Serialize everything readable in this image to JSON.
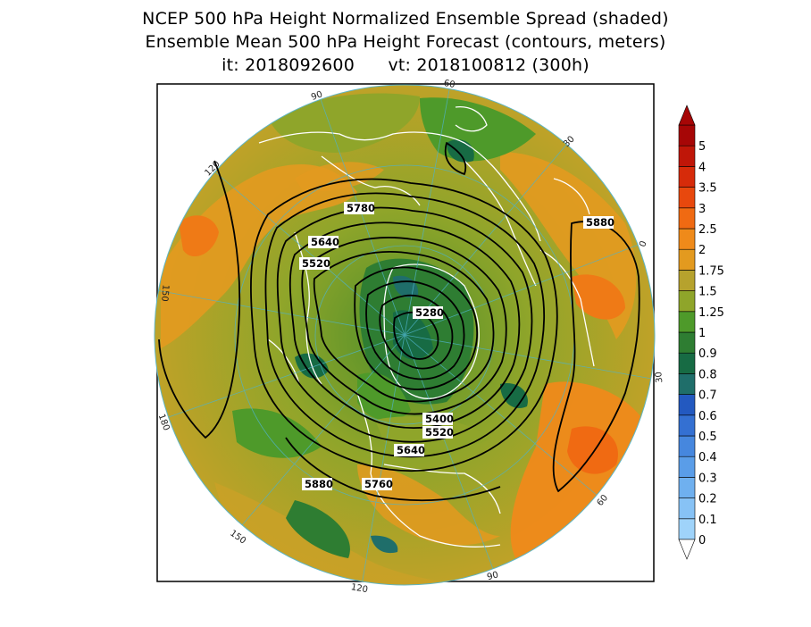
{
  "title": {
    "line1": "NCEP 500 hPa Height Normalized Ensemble Spread (shaded)",
    "line2": "Ensemble Mean 500 hPa Height Forecast (contours, meters)",
    "line3": "it: 2018092600      vt: 2018100812 (300h)"
  },
  "longitude_labels": [
    "60",
    "30",
    "0",
    "30",
    "60",
    "90",
    "120",
    "150",
    "180",
    "150",
    "120",
    "90"
  ],
  "contour_labels": [
    "5780",
    "5640",
    "5520",
    "5280",
    "5400",
    "5520",
    "5640",
    "5760",
    "5880",
    "5880"
  ],
  "colorbar": {
    "levels": [
      "0",
      "0.1",
      "0.2",
      "0.3",
      "0.4",
      "0.5",
      "0.6",
      "0.7",
      "0.8",
      "0.9",
      "1",
      "1.25",
      "1.5",
      "1.75",
      "2",
      "2.5",
      "3",
      "3.5",
      "4",
      "5"
    ],
    "colors": [
      "#9fd3fa",
      "#87c2f5",
      "#6fb0ef",
      "#5a9de8",
      "#4687de",
      "#3470d2",
      "#2359c0",
      "#1f6e6a",
      "#176b44",
      "#2e7d32",
      "#4e9a2a",
      "#8fa52a",
      "#b6a22d",
      "#e39a1f",
      "#ef8a1a",
      "#f06a12",
      "#e8480d",
      "#d62b0a",
      "#bf1608",
      "#a60606"
    ]
  }
}
